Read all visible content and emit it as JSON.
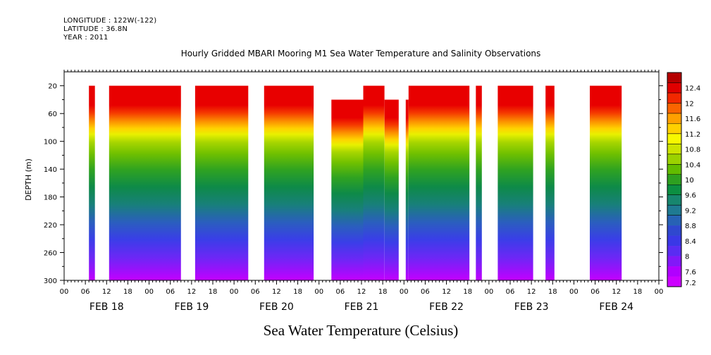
{
  "header": {
    "longitude": "LONGITUDE : 122W(-122)",
    "latitude": "LATITUDE : 36.8N",
    "year": "YEAR : 2011"
  },
  "chart_data": {
    "type": "heatmap",
    "title": "Hourly Gridded MBARI Mooring M1 Sea Water Temperature and Salinity Observations",
    "xlabel": "",
    "ylabel": "DEPTH (m)",
    "footer_label": "Sea Water Temperature (Celsius)",
    "ylim": [
      300,
      0
    ],
    "y_ticks": [
      20,
      60,
      100,
      140,
      180,
      220,
      260,
      300
    ],
    "x_range_hours": [
      0,
      168
    ],
    "x_tick_labels": [
      "00",
      "06",
      "12",
      "18",
      "00",
      "06",
      "12",
      "18",
      "00",
      "06",
      "12",
      "18",
      "00",
      "06",
      "12",
      "18",
      "00",
      "06",
      "12",
      "18",
      "00",
      "06",
      "12",
      "18",
      "00",
      "06",
      "12",
      "18",
      "00"
    ],
    "day_labels": [
      "FEB 18",
      "FEB 19",
      "FEB 20",
      "FEB 21",
      "FEB 22",
      "FEB 23",
      "FEB 24"
    ],
    "colorbar": {
      "levels": [
        12.4,
        12,
        11.6,
        11.2,
        10.8,
        10.4,
        10,
        9.6,
        9.2,
        8.8,
        8.4,
        8,
        7.6,
        7.2
      ],
      "colors": [
        "#b50000",
        "#e00000",
        "#f22800",
        "#fa6400",
        "#ffa000",
        "#ffd000",
        "#f8f800",
        "#cde400",
        "#9bd200",
        "#62bc00",
        "#2ea020",
        "#0c8f42",
        "#17866e",
        "#1f7a92",
        "#2762b5",
        "#2f48cf",
        "#3a38e6",
        "#5a2cf2",
        "#8218f8",
        "#b000ff",
        "#cc00ff"
      ]
    },
    "data_blocks": [
      {
        "start": 7,
        "end": 8.7,
        "top": 20
      },
      {
        "start": 12.7,
        "end": 33,
        "top": 20
      },
      {
        "start": 37,
        "end": 52,
        "top": 20
      },
      {
        "start": 56.5,
        "end": 70.5,
        "top": 20
      },
      {
        "start": 75.5,
        "end": 84.5,
        "top": 40
      },
      {
        "start": 84.5,
        "end": 90.5,
        "top": 20
      },
      {
        "start": 90.5,
        "end": 94.5,
        "top": 40
      },
      {
        "start": 96.5,
        "end": 97.3,
        "top": 40
      },
      {
        "start": 97.3,
        "end": 114.5,
        "top": 20
      },
      {
        "start": 116.3,
        "end": 118,
        "top": 20
      },
      {
        "start": 122.5,
        "end": 132.5,
        "top": 20
      },
      {
        "start": 136,
        "end": 138.5,
        "top": 20
      },
      {
        "start": 148.5,
        "end": 157.5,
        "top": 20
      }
    ]
  }
}
